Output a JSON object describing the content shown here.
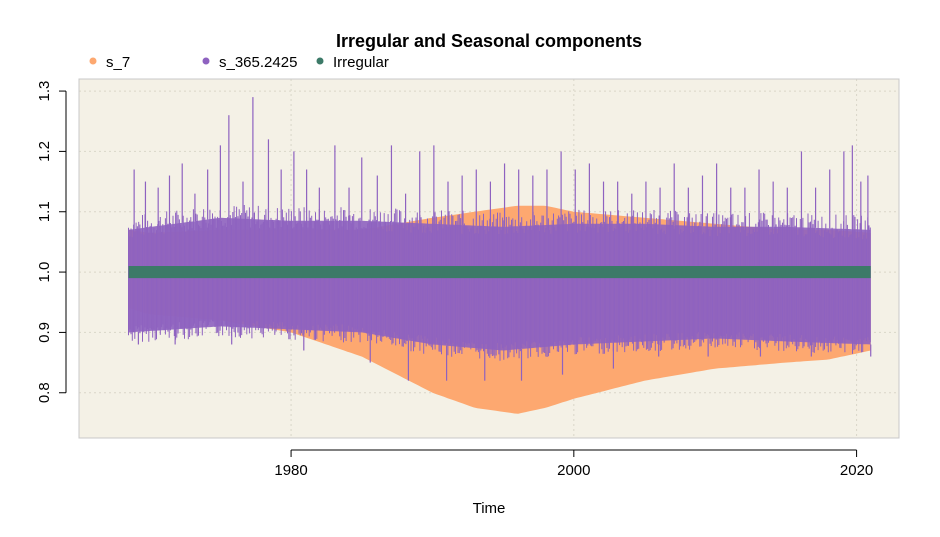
{
  "chart_data": {
    "type": "area",
    "title": "Irregular and Seasonal components",
    "xlabel": "Time",
    "ylabel": "",
    "xlim": [
      1965.0,
      2023.0
    ],
    "ylim": [
      0.725,
      1.32
    ],
    "x_ticks": [
      1980,
      2000,
      2020
    ],
    "y_ticks": [
      0.8,
      0.9,
      1.0,
      1.1,
      1.2,
      1.3
    ],
    "x_tick_labels": [
      "1980",
      "2000",
      "2020"
    ],
    "y_tick_labels": [
      "0.8",
      "0.9",
      "1.0",
      "1.1",
      "1.2",
      "1.3"
    ],
    "grid": true,
    "legend_position": "top-left",
    "background": "#f4f1e6",
    "series": [
      {
        "name": "s_7",
        "color": "#fda870",
        "x": [
          1968.5,
          1970,
          1975,
          1980,
          1985,
          1990,
          1993,
          1996,
          1998,
          2000,
          2005,
          2010,
          2015,
          2018,
          2021
        ],
        "lower": [
          0.94,
          0.93,
          0.92,
          0.9,
          0.86,
          0.8,
          0.775,
          0.765,
          0.775,
          0.79,
          0.82,
          0.84,
          0.85,
          0.855,
          0.87
        ],
        "upper": [
          1.07,
          1.065,
          1.07,
          1.07,
          1.07,
          1.09,
          1.1,
          1.11,
          1.11,
          1.1,
          1.09,
          1.08,
          1.07,
          1.07,
          1.065
        ]
      },
      {
        "name": "s_365.2425",
        "color": "#8e62c0",
        "x": [
          1968.5,
          1975,
          1980,
          1985,
          1990,
          1995,
          2000,
          2005,
          2010,
          2015,
          2021
        ],
        "lower": [
          0.9,
          0.91,
          0.905,
          0.9,
          0.88,
          0.87,
          0.88,
          0.885,
          0.89,
          0.885,
          0.88
        ],
        "upper": [
          1.07,
          1.09,
          1.085,
          1.085,
          1.08,
          1.075,
          1.08,
          1.08,
          1.075,
          1.075,
          1.07
        ],
        "peaks": [
          {
            "x": 1968.9,
            "y": 1.17
          },
          {
            "x": 1969.7,
            "y": 1.15
          },
          {
            "x": 1970.6,
            "y": 1.14
          },
          {
            "x": 1971.4,
            "y": 1.16
          },
          {
            "x": 1972.3,
            "y": 1.18
          },
          {
            "x": 1973.2,
            "y": 1.13
          },
          {
            "x": 1974.1,
            "y": 1.17
          },
          {
            "x": 1975.0,
            "y": 1.21
          },
          {
            "x": 1975.6,
            "y": 1.26
          },
          {
            "x": 1976.6,
            "y": 1.15
          },
          {
            "x": 1977.3,
            "y": 1.29
          },
          {
            "x": 1978.4,
            "y": 1.22
          },
          {
            "x": 1979.3,
            "y": 1.17
          },
          {
            "x": 1980.2,
            "y": 1.2
          },
          {
            "x": 1981.1,
            "y": 1.17
          },
          {
            "x": 1982.0,
            "y": 1.14
          },
          {
            "x": 1983.1,
            "y": 1.21
          },
          {
            "x": 1984.1,
            "y": 1.14
          },
          {
            "x": 1985.0,
            "y": 1.19
          },
          {
            "x": 1986.1,
            "y": 1.16
          },
          {
            "x": 1987.1,
            "y": 1.21
          },
          {
            "x": 1988.1,
            "y": 1.13
          },
          {
            "x": 1989.1,
            "y": 1.2
          },
          {
            "x": 1990.1,
            "y": 1.21
          },
          {
            "x": 1991.1,
            "y": 1.15
          },
          {
            "x": 1992.1,
            "y": 1.16
          },
          {
            "x": 1993.1,
            "y": 1.17
          },
          {
            "x": 1994.1,
            "y": 1.15
          },
          {
            "x": 1995.1,
            "y": 1.18
          },
          {
            "x": 1996.1,
            "y": 1.17
          },
          {
            "x": 1997.1,
            "y": 1.16
          },
          {
            "x": 1998.1,
            "y": 1.17
          },
          {
            "x": 1999.1,
            "y": 1.2
          },
          {
            "x": 2000.1,
            "y": 1.17
          },
          {
            "x": 2001.1,
            "y": 1.18
          },
          {
            "x": 2002.1,
            "y": 1.15
          },
          {
            "x": 2003.1,
            "y": 1.15
          },
          {
            "x": 2004.1,
            "y": 1.13
          },
          {
            "x": 2005.1,
            "y": 1.15
          },
          {
            "x": 2006.1,
            "y": 1.14
          },
          {
            "x": 2007.1,
            "y": 1.18
          },
          {
            "x": 2008.1,
            "y": 1.14
          },
          {
            "x": 2009.1,
            "y": 1.16
          },
          {
            "x": 2010.1,
            "y": 1.18
          },
          {
            "x": 2011.1,
            "y": 1.14
          },
          {
            "x": 2012.1,
            "y": 1.14
          },
          {
            "x": 2013.1,
            "y": 1.17
          },
          {
            "x": 2014.1,
            "y": 1.15
          },
          {
            "x": 2015.1,
            "y": 1.14
          },
          {
            "x": 2016.1,
            "y": 1.2
          },
          {
            "x": 2017.1,
            "y": 1.14
          },
          {
            "x": 2018.1,
            "y": 1.17
          },
          {
            "x": 2019.1,
            "y": 1.2
          },
          {
            "x": 2019.7,
            "y": 1.21
          },
          {
            "x": 2020.3,
            "y": 1.15
          },
          {
            "x": 2020.8,
            "y": 1.16
          }
        ],
        "troughs": [
          {
            "x": 1969.2,
            "y": 0.88
          },
          {
            "x": 1971.8,
            "y": 0.88
          },
          {
            "x": 1975.8,
            "y": 0.88
          },
          {
            "x": 1980.9,
            "y": 0.87
          },
          {
            "x": 1985.6,
            "y": 0.85
          },
          {
            "x": 1988.3,
            "y": 0.82
          },
          {
            "x": 1991.0,
            "y": 0.82
          },
          {
            "x": 1993.7,
            "y": 0.82
          },
          {
            "x": 1996.3,
            "y": 0.82
          },
          {
            "x": 1999.2,
            "y": 0.83
          },
          {
            "x": 2002.8,
            "y": 0.84
          },
          {
            "x": 2006.0,
            "y": 0.86
          },
          {
            "x": 2009.5,
            "y": 0.86
          },
          {
            "x": 2013.2,
            "y": 0.86
          },
          {
            "x": 2016.8,
            "y": 0.86
          },
          {
            "x": 2021.0,
            "y": 0.86
          }
        ]
      },
      {
        "name": "Irregular",
        "color": "#3c7a68",
        "x": [
          1968.5,
          2021
        ],
        "lower": [
          0.99,
          0.99
        ],
        "upper": [
          1.01,
          1.01
        ]
      }
    ]
  }
}
